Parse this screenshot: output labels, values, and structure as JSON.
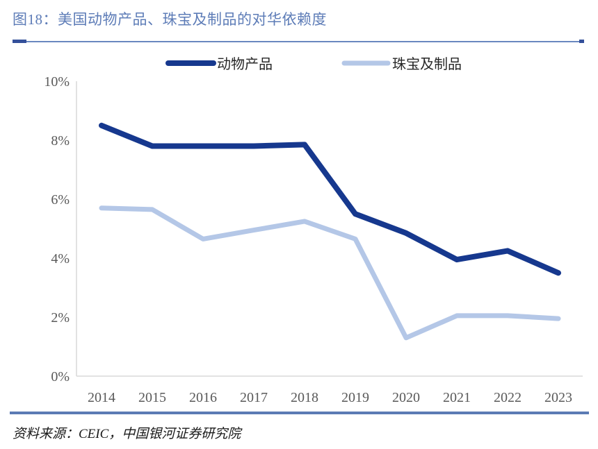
{
  "figure": {
    "title": "图18：美国动物产品、珠宝及制品的对华依赖度",
    "source_note": "资料来源：CEIC，中国银河证券研究院"
  },
  "colors": {
    "series1": "#16388E",
    "series2": "#B4C7E7",
    "title_text": "#5D7CB7",
    "title_rule": "#6987BF",
    "title_rule_cap": "#34509A",
    "footer_rule": "#5B7BB4",
    "tick_label": "#595959",
    "legend_text": "#262626",
    "axis_line": "#D9D9D9",
    "source_text": "#1A1A1A"
  },
  "chart_data": {
    "type": "line",
    "title": "美国动物产品、珠宝及制品的对华依赖度",
    "categories": [
      "2014",
      "2015",
      "2016",
      "2017",
      "2018",
      "2019",
      "2020",
      "2021",
      "2022",
      "2023"
    ],
    "series": [
      {
        "name": "动物产品",
        "color_key": "series1",
        "stroke_width": 8,
        "values": [
          8.5,
          7.8,
          7.8,
          7.8,
          7.85,
          5.5,
          4.85,
          3.95,
          4.25,
          3.5
        ]
      },
      {
        "name": "珠宝及制品",
        "color_key": "series2",
        "stroke_width": 7,
        "values": [
          5.7,
          5.65,
          4.65,
          4.95,
          5.25,
          4.65,
          1.3,
          2.05,
          2.05,
          1.95
        ]
      }
    ],
    "xlabel": "",
    "ylabel": "",
    "y_ticks": [
      "0%",
      "2%",
      "4%",
      "6%",
      "8%",
      "10%"
    ],
    "ylim": [
      0,
      10
    ],
    "grid": false,
    "legend_position": "top-center"
  }
}
